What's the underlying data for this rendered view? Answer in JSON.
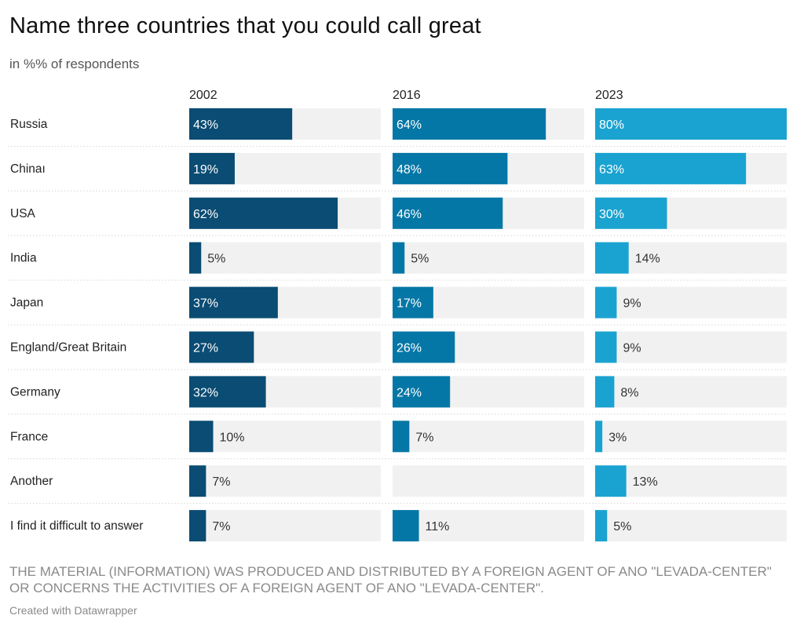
{
  "title": "Name three countries that you could call great",
  "subtitle": "in %% of respondents",
  "note": "THE MATERIAL (INFORMATION) WAS PRODUCED AND DISTRIBUTED BY A FOREIGN AGENT OF ANO \"LEVADA-CENTER\" OR CONCERNS THE ACTIVITIES OF A FOREIGN AGENT OF ANO \"LEVADA-CENTER\".",
  "credit": "Created with Datawrapper",
  "colors": {
    "track": "#f1f1f1",
    "series_2002": "#0a4c73",
    "series_2016": "#0577a6",
    "series_2023": "#1aa3d0",
    "label_inside": "#ffffff",
    "label_outside": "#333333",
    "divider": "#d6d6d6"
  },
  "chart_data": {
    "type": "bar",
    "orientation": "horizontal",
    "layout": "small-multiples",
    "title": "Name three countries that you could call great",
    "unit": "%",
    "xlim": [
      0,
      80
    ],
    "categories": [
      "Russia",
      "Chinaı",
      "USA",
      "India",
      "Japan",
      "England/Great Britain",
      "Germany",
      "France",
      "Another",
      "I find it difficult to answer"
    ],
    "series": [
      {
        "name": "2002",
        "values": [
          43,
          19,
          62,
          5,
          37,
          27,
          32,
          10,
          7,
          7
        ]
      },
      {
        "name": "2016",
        "values": [
          64,
          48,
          46,
          5,
          17,
          26,
          24,
          7,
          null,
          11
        ]
      },
      {
        "name": "2023",
        "values": [
          80,
          63,
          30,
          14,
          9,
          9,
          8,
          3,
          13,
          5
        ]
      }
    ]
  }
}
